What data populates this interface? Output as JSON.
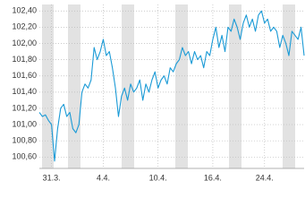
{
  "chart_data": {
    "type": "line",
    "categories": [
      null,
      null,
      null,
      null,
      "31.3.",
      null,
      null,
      null,
      null,
      null,
      null,
      null,
      null,
      null,
      null,
      null,
      null,
      null,
      null,
      null,
      null,
      "4.4.",
      null,
      null,
      null,
      null,
      null,
      null,
      null,
      null,
      null,
      null,
      null,
      null,
      null,
      null,
      null,
      null,
      null,
      "10.4.",
      null,
      null,
      null,
      null,
      null,
      null,
      null,
      null,
      null,
      null,
      null,
      null,
      null,
      null,
      null,
      null,
      null,
      "16.4.",
      null,
      null,
      null,
      null,
      null,
      null,
      null,
      null,
      null,
      null,
      null,
      null,
      null,
      null,
      null,
      null,
      "24.4.",
      null,
      null,
      null,
      null,
      null,
      null,
      null,
      null,
      null,
      null,
      null,
      null,
      null
    ],
    "series": [
      {
        "color": "#1a9ad6",
        "values": [
          101.15,
          101.1,
          101.12,
          101.05,
          101.0,
          100.55,
          100.95,
          101.2,
          101.25,
          101.1,
          101.15,
          100.95,
          100.9,
          101.0,
          101.4,
          101.5,
          101.45,
          101.55,
          101.95,
          101.8,
          101.9,
          102.05,
          101.85,
          101.9,
          101.7,
          101.45,
          101.1,
          101.35,
          101.45,
          101.3,
          101.5,
          101.4,
          101.45,
          101.55,
          101.3,
          101.5,
          101.4,
          101.55,
          101.65,
          101.45,
          101.55,
          101.6,
          101.5,
          101.7,
          101.65,
          101.75,
          101.8,
          101.95,
          101.85,
          101.9,
          101.75,
          101.9,
          101.8,
          101.85,
          101.7,
          101.9,
          101.85,
          102.05,
          102.2,
          101.95,
          102.1,
          101.9,
          102.2,
          102.15,
          102.3,
          102.2,
          102.05,
          102.25,
          102.35,
          102.2,
          102.3,
          102.15,
          102.35,
          102.4,
          102.25,
          102.3,
          102.15,
          102.2,
          102.15,
          101.95,
          102.1,
          102.0,
          101.85,
          102.15,
          102.1,
          102.05,
          102.2,
          101.85
        ]
      }
    ],
    "ylim": [
      100.46,
      102.48
    ],
    "yticks": [
      {
        "value": 100.6,
        "label": "100,60"
      },
      {
        "value": 100.8,
        "label": "100,80"
      },
      {
        "value": 101.0,
        "label": "101,00"
      },
      {
        "value": 101.2,
        "label": "101,20"
      },
      {
        "value": 101.4,
        "label": "101,40"
      },
      {
        "value": 101.6,
        "label": "101,60"
      },
      {
        "value": 101.8,
        "label": "101,80"
      },
      {
        "value": 102.0,
        "label": "102,00"
      },
      {
        "value": 102.2,
        "label": "102,20"
      },
      {
        "value": 102.4,
        "label": "102,40"
      }
    ],
    "grid": true
  }
}
